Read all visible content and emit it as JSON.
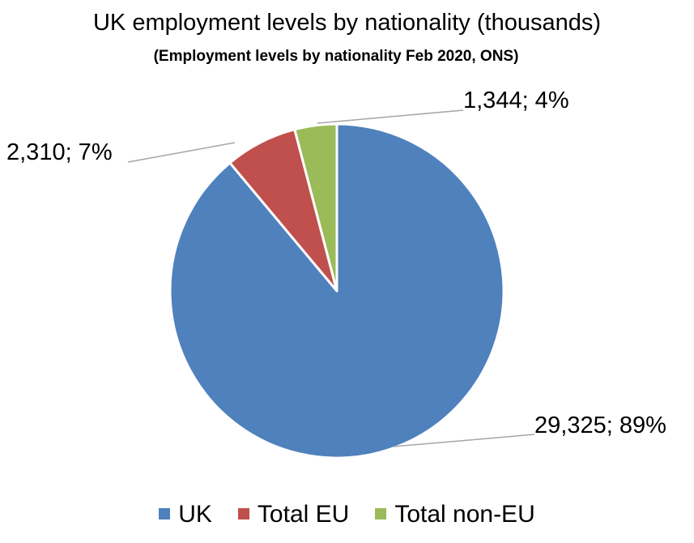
{
  "chart_data": {
    "type": "pie",
    "title": "UK employment levels by nationality (thousands)",
    "subtitle": "(Employment  levels by nationality Feb 2020, ONS)",
    "slices": [
      {
        "name": "UK",
        "value": 29325,
        "percent": 89,
        "label": "29,325; 89%",
        "color": "#4F81BD"
      },
      {
        "name": "Total EU",
        "value": 2310,
        "percent": 7,
        "label": "2,310; 7%",
        "color": "#C0504D"
      },
      {
        "name": "Total non-EU",
        "value": 1344,
        "percent": 4,
        "label": "1,344; 4%",
        "color": "#9BBB59"
      }
    ],
    "legend_position": "bottom",
    "start_angle": "12 o'clock",
    "direction": "clockwise"
  }
}
